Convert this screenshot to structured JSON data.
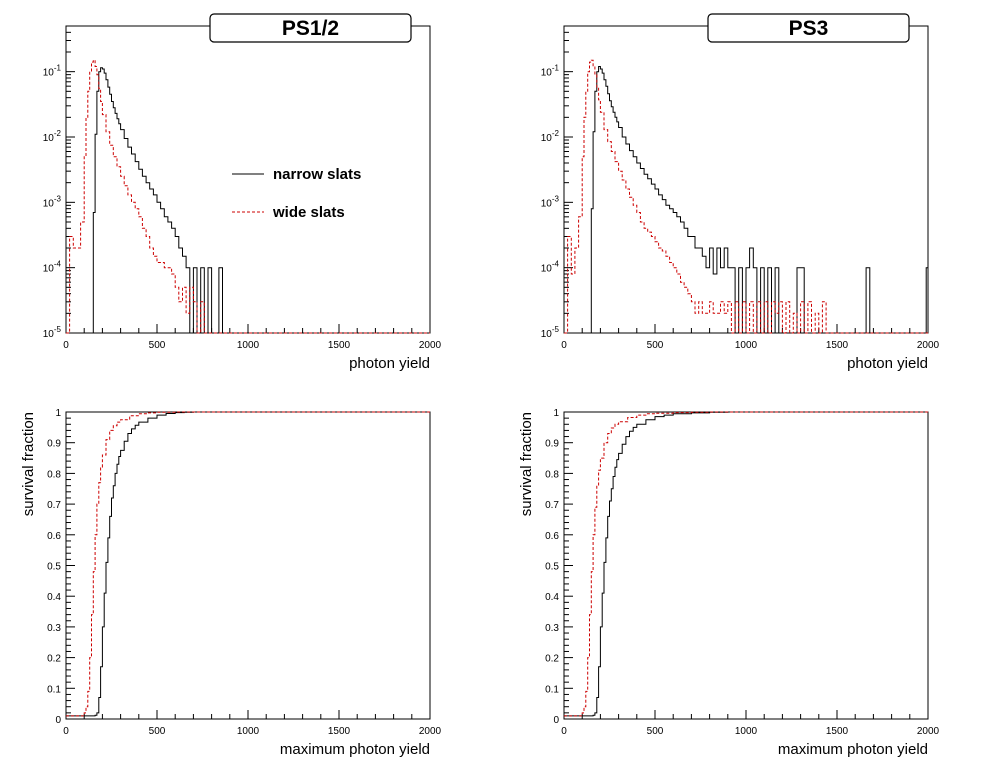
{
  "colors": {
    "narrow": "#000000",
    "wide": "#cc0000"
  },
  "legend": {
    "position": "right-of-peak",
    "entries": [
      {
        "label": "narrow slats",
        "series": "narrow",
        "style": "solid"
      },
      {
        "label": "wide slats",
        "series": "wide",
        "style": "dashed"
      }
    ]
  },
  "chart_data": [
    {
      "id": "ps12-yield",
      "type": "line",
      "style": "step",
      "title": "PS1/2",
      "xlabel": "photon yield",
      "ylabel": "",
      "xlim": [
        0,
        2000
      ],
      "ylim": [
        1e-05,
        0.5
      ],
      "yscale": "log",
      "xticks": [
        0,
        500,
        1000,
        1500,
        2000
      ],
      "yticks": [
        {
          "value": 1e-05,
          "base": "10",
          "exp": "-5"
        },
        {
          "value": 0.0001,
          "base": "10",
          "exp": "-4"
        },
        {
          "value": 0.001,
          "base": "10",
          "exp": "-3"
        },
        {
          "value": 0.01,
          "base": "10",
          "exp": "-2"
        },
        {
          "value": 0.1,
          "base": "10",
          "exp": "-1"
        }
      ],
      "show_legend": true,
      "series": [
        {
          "name": "narrow slats",
          "color": "#000000",
          "dash": "",
          "x": [
            0,
            100,
            120,
            140,
            150,
            160,
            170,
            180,
            190,
            200,
            210,
            220,
            230,
            240,
            250,
            260,
            270,
            280,
            290,
            300,
            320,
            340,
            360,
            380,
            400,
            420,
            440,
            460,
            480,
            500,
            520,
            540,
            560,
            580,
            600,
            620,
            640,
            660,
            680,
            700,
            720,
            740,
            760,
            780,
            800,
            820,
            840,
            860,
            2000
          ],
          "y": [
            1e-05,
            1e-05,
            1e-05,
            1e-05,
            0.0007,
            0.011,
            0.05,
            0.1,
            0.115,
            0.11,
            0.095,
            0.075,
            0.058,
            0.045,
            0.035,
            0.028,
            0.023,
            0.019,
            0.016,
            0.013,
            0.0095,
            0.007,
            0.0055,
            0.0042,
            0.0032,
            0.0025,
            0.002,
            0.0016,
            0.0013,
            0.001,
            0.0008,
            0.0006,
            0.0005,
            0.0004,
            0.0003,
            0.0002,
            0.00015,
            0.0001,
            1e-05,
            0.0001,
            1e-05,
            0.0001,
            1e-05,
            0.0001,
            1e-05,
            1e-05,
            0.0001,
            1e-05,
            1e-05
          ]
        },
        {
          "name": "wide slats",
          "color": "#cc0000",
          "dash": "3,2",
          "x": [
            0,
            20,
            40,
            60,
            80,
            100,
            110,
            120,
            130,
            140,
            150,
            160,
            170,
            180,
            190,
            200,
            220,
            240,
            260,
            280,
            300,
            320,
            340,
            360,
            380,
            400,
            420,
            440,
            460,
            480,
            500,
            520,
            540,
            560,
            580,
            600,
            620,
            640,
            660,
            680,
            700,
            720,
            740,
            760,
            780,
            2000
          ],
          "y": [
            1e-05,
            0.0003,
            0.0002,
            0.0002,
            0.0005,
            0.005,
            0.02,
            0.05,
            0.1,
            0.14,
            0.15,
            0.12,
            0.09,
            0.055,
            0.035,
            0.022,
            0.012,
            0.0075,
            0.005,
            0.0035,
            0.0025,
            0.0018,
            0.0013,
            0.001,
            0.0008,
            0.0006,
            0.0004,
            0.0003,
            0.0002,
            0.00015,
            0.00012,
            0.00012,
            0.0001,
            0.0001,
            8e-05,
            5e-05,
            3e-05,
            5e-05,
            2e-05,
            5e-05,
            3e-05,
            1e-05,
            3e-05,
            1e-05,
            1e-05,
            1e-05
          ]
        }
      ]
    },
    {
      "id": "ps3-yield",
      "type": "line",
      "style": "step",
      "title": "PS3",
      "xlabel": "photon yield",
      "ylabel": "",
      "xlim": [
        0,
        2000
      ],
      "ylim": [
        1e-05,
        0.5
      ],
      "yscale": "log",
      "xticks": [
        0,
        500,
        1000,
        1500,
        2000
      ],
      "yticks": [
        {
          "value": 1e-05,
          "base": "10",
          "exp": "-5"
        },
        {
          "value": 0.0001,
          "base": "10",
          "exp": "-4"
        },
        {
          "value": 0.001,
          "base": "10",
          "exp": "-3"
        },
        {
          "value": 0.01,
          "base": "10",
          "exp": "-2"
        },
        {
          "value": 0.1,
          "base": "10",
          "exp": "-1"
        }
      ],
      "show_legend": false,
      "series": [
        {
          "name": "narrow slats",
          "color": "#000000",
          "dash": "",
          "x": [
            0,
            100,
            120,
            140,
            150,
            160,
            170,
            180,
            190,
            200,
            210,
            220,
            230,
            240,
            250,
            260,
            270,
            280,
            290,
            300,
            320,
            340,
            360,
            380,
            400,
            420,
            440,
            460,
            480,
            500,
            520,
            540,
            560,
            580,
            600,
            620,
            640,
            660,
            680,
            700,
            720,
            740,
            760,
            780,
            800,
            820,
            840,
            860,
            880,
            900,
            920,
            940,
            960,
            980,
            1000,
            1020,
            1040,
            1060,
            1080,
            1100,
            1120,
            1140,
            1160,
            1180,
            1200,
            1280,
            1300,
            1320,
            1660,
            1670,
            1680,
            1990,
            2000
          ],
          "y": [
            1e-05,
            1e-05,
            1e-05,
            1e-05,
            0.0008,
            0.012,
            0.05,
            0.1,
            0.12,
            0.11,
            0.095,
            0.075,
            0.06,
            0.046,
            0.036,
            0.029,
            0.024,
            0.02,
            0.017,
            0.014,
            0.01,
            0.0078,
            0.0062,
            0.005,
            0.004,
            0.0033,
            0.0027,
            0.0023,
            0.0019,
            0.0016,
            0.0013,
            0.0011,
            0.0009,
            0.0008,
            0.0007,
            0.0006,
            0.0005,
            0.0004,
            0.0003,
            0.0003,
            0.0002,
            0.0002,
            0.00015,
            0.0001,
            0.0002,
            8e-05,
            0.0002,
            0.0001,
            0.0002,
            0.0001,
            0.0001,
            1e-05,
            0.0001,
            1e-05,
            0.0001,
            0.0002,
            0.0001,
            1e-05,
            0.0001,
            1e-05,
            0.0001,
            1e-05,
            0.0001,
            1e-05,
            1e-05,
            0.0001,
            0.0001,
            1e-05,
            0.0001,
            0.0001,
            1e-05,
            0.0001,
            1e-05
          ]
        },
        {
          "name": "wide slats",
          "color": "#cc0000",
          "dash": "3,2",
          "x": [
            0,
            20,
            40,
            60,
            80,
            100,
            110,
            120,
            130,
            140,
            150,
            160,
            170,
            180,
            190,
            200,
            220,
            240,
            260,
            280,
            300,
            320,
            340,
            360,
            380,
            400,
            420,
            440,
            460,
            480,
            500,
            520,
            540,
            560,
            580,
            600,
            620,
            640,
            660,
            680,
            700,
            720,
            740,
            760,
            780,
            800,
            820,
            840,
            860,
            880,
            900,
            920,
            940,
            960,
            980,
            1000,
            1020,
            1040,
            1060,
            1080,
            1100,
            1120,
            1140,
            1160,
            1180,
            1200,
            1220,
            1240,
            1260,
            1280,
            1300,
            1320,
            1340,
            1360,
            1380,
            1400,
            1420,
            1440,
            2000
          ],
          "y": [
            1e-05,
            0.0003,
            8e-05,
            0.0002,
            0.0006,
            0.005,
            0.02,
            0.05,
            0.1,
            0.14,
            0.15,
            0.12,
            0.09,
            0.058,
            0.037,
            0.024,
            0.013,
            0.0085,
            0.006,
            0.0042,
            0.003,
            0.0022,
            0.0016,
            0.0012,
            0.0009,
            0.0007,
            0.0005,
            0.0004,
            0.00035,
            0.0003,
            0.00025,
            0.0002,
            0.00018,
            0.00015,
            0.00012,
            0.0001,
            8e-05,
            6e-05,
            5e-05,
            4e-05,
            3e-05,
            2e-05,
            3e-05,
            2e-05,
            2e-05,
            3e-05,
            2e-05,
            2e-05,
            3e-05,
            2e-05,
            3e-05,
            1e-05,
            3e-05,
            1e-05,
            3e-05,
            1e-05,
            3e-05,
            1e-05,
            3e-05,
            1e-05,
            3e-05,
            1e-05,
            3e-05,
            2e-05,
            3e-05,
            1e-05,
            3e-05,
            1e-05,
            2e-05,
            1e-05,
            3e-05,
            1e-05,
            3e-05,
            1e-05,
            2e-05,
            1e-05,
            3e-05,
            1e-05,
            1e-05
          ]
        }
      ]
    },
    {
      "id": "ps12-survival",
      "type": "line",
      "style": "step",
      "title": "",
      "xlabel": "maximum photon yield",
      "ylabel": "survival fraction",
      "xlim": [
        0,
        2000
      ],
      "ylim": [
        0,
        1
      ],
      "yscale": "linear",
      "xticks": [
        0,
        500,
        1000,
        1500,
        2000
      ],
      "yticks": [
        {
          "value": 0,
          "label": "0"
        },
        {
          "value": 0.1,
          "label": "0.1"
        },
        {
          "value": 0.2,
          "label": "0.2"
        },
        {
          "value": 0.3,
          "label": "0.3"
        },
        {
          "value": 0.4,
          "label": "0.4"
        },
        {
          "value": 0.5,
          "label": "0.5"
        },
        {
          "value": 0.6,
          "label": "0.6"
        },
        {
          "value": 0.7,
          "label": "0.7"
        },
        {
          "value": 0.8,
          "label": "0.8"
        },
        {
          "value": 0.9,
          "label": "0.9"
        },
        {
          "value": 1,
          "label": "1"
        }
      ],
      "show_legend": false,
      "series": [
        {
          "name": "narrow slats",
          "color": "#000000",
          "dash": "",
          "x": [
            0,
            150,
            160,
            170,
            180,
            190,
            200,
            210,
            220,
            230,
            240,
            250,
            260,
            270,
            280,
            290,
            300,
            320,
            340,
            360,
            380,
            400,
            450,
            500,
            550,
            600,
            650,
            700,
            2000
          ],
          "y": [
            0.01,
            0.01,
            0.012,
            0.02,
            0.07,
            0.17,
            0.3,
            0.41,
            0.51,
            0.59,
            0.66,
            0.72,
            0.76,
            0.8,
            0.83,
            0.855,
            0.875,
            0.905,
            0.93,
            0.945,
            0.957,
            0.967,
            0.98,
            0.99,
            0.995,
            0.998,
            0.999,
            1,
            1
          ]
        },
        {
          "name": "wide slats",
          "color": "#cc0000",
          "dash": "3,2",
          "x": [
            0,
            100,
            110,
            120,
            130,
            140,
            150,
            160,
            170,
            180,
            190,
            200,
            220,
            240,
            260,
            280,
            300,
            350,
            400,
            450,
            500,
            600,
            700,
            2000
          ],
          "y": [
            0.01,
            0.02,
            0.04,
            0.09,
            0.2,
            0.34,
            0.48,
            0.6,
            0.7,
            0.77,
            0.82,
            0.86,
            0.91,
            0.94,
            0.955,
            0.967,
            0.975,
            0.988,
            0.994,
            0.997,
            0.999,
            1,
            1,
            1
          ]
        }
      ]
    },
    {
      "id": "ps3-survival",
      "type": "line",
      "style": "step",
      "title": "",
      "xlabel": "maximum photon yield",
      "ylabel": "survival fraction",
      "xlim": [
        0,
        2000
      ],
      "ylim": [
        0,
        1
      ],
      "yscale": "linear",
      "xticks": [
        0,
        500,
        1000,
        1500,
        2000
      ],
      "yticks": [
        {
          "value": 0,
          "label": "0"
        },
        {
          "value": 0.1,
          "label": "0.1"
        },
        {
          "value": 0.2,
          "label": "0.2"
        },
        {
          "value": 0.3,
          "label": "0.3"
        },
        {
          "value": 0.4,
          "label": "0.4"
        },
        {
          "value": 0.5,
          "label": "0.5"
        },
        {
          "value": 0.6,
          "label": "0.6"
        },
        {
          "value": 0.7,
          "label": "0.7"
        },
        {
          "value": 0.8,
          "label": "0.8"
        },
        {
          "value": 0.9,
          "label": "0.9"
        },
        {
          "value": 1,
          "label": "1"
        }
      ],
      "show_legend": false,
      "series": [
        {
          "name": "narrow slats",
          "color": "#000000",
          "dash": "",
          "x": [
            0,
            150,
            160,
            170,
            180,
            190,
            200,
            210,
            220,
            230,
            240,
            250,
            260,
            270,
            280,
            290,
            300,
            320,
            340,
            360,
            380,
            400,
            450,
            500,
            550,
            600,
            700,
            800,
            900,
            950,
            2000
          ],
          "y": [
            0.01,
            0.01,
            0.012,
            0.02,
            0.07,
            0.17,
            0.3,
            0.41,
            0.51,
            0.59,
            0.66,
            0.71,
            0.75,
            0.79,
            0.82,
            0.845,
            0.865,
            0.895,
            0.92,
            0.937,
            0.95,
            0.96,
            0.975,
            0.985,
            0.99,
            0.994,
            0.997,
            0.999,
            1,
            1,
            1
          ]
        },
        {
          "name": "wide slats",
          "color": "#cc0000",
          "dash": "3,2",
          "x": [
            0,
            100,
            110,
            120,
            130,
            140,
            150,
            160,
            170,
            180,
            190,
            200,
            220,
            240,
            260,
            280,
            300,
            350,
            400,
            450,
            500,
            600,
            700,
            800,
            900,
            1000,
            2000
          ],
          "y": [
            0.01,
            0.02,
            0.04,
            0.09,
            0.2,
            0.34,
            0.48,
            0.6,
            0.69,
            0.76,
            0.81,
            0.85,
            0.9,
            0.93,
            0.948,
            0.96,
            0.968,
            0.982,
            0.99,
            0.994,
            0.996,
            0.998,
            0.999,
            1,
            1,
            1,
            1
          ]
        }
      ]
    }
  ]
}
